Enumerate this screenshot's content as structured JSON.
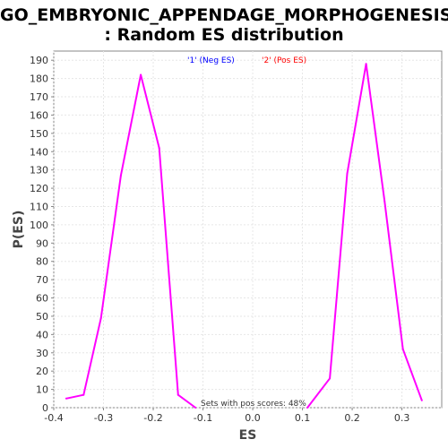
{
  "chart_data": {
    "type": "line",
    "title_line1": "GO_EMBRYONIC_APPENDAGE_MORPHOGENESIS",
    "title_line2": ": Random ES distribution",
    "xlabel": "ES",
    "ylabel": "P(ES)",
    "xlim": [
      -0.4,
      0.38
    ],
    "ylim": [
      0,
      195
    ],
    "xticks": [
      -0.4,
      -0.3,
      -0.2,
      -0.1,
      0.0,
      0.1,
      0.2,
      0.3
    ],
    "xtick_labels": [
      "-0.4",
      "-0.3",
      "-0.2",
      "-0.1",
      "0.0",
      "0.1",
      "0.2",
      "0.3"
    ],
    "yticks": [
      0,
      10,
      20,
      30,
      40,
      50,
      60,
      70,
      80,
      90,
      100,
      110,
      120,
      130,
      140,
      150,
      160,
      170,
      180,
      190
    ],
    "grid": true,
    "legend": [
      "'1' (Neg ES)",
      "'2' (Pos ES)"
    ],
    "legend_colors": [
      "#0000ff",
      "#ff0000"
    ],
    "line_color": "#ff00ff",
    "annotation": "Sets with pos scores: 48%",
    "series": [
      {
        "x": [
          -0.375,
          -0.34,
          -0.305,
          -0.265,
          -0.225,
          -0.188,
          -0.15,
          -0.115
        ],
        "y": [
          5,
          7,
          49,
          127,
          182,
          142,
          7,
          0
        ]
      },
      {
        "x": [
          0.11,
          0.155,
          0.19,
          0.228,
          0.265,
          0.302,
          0.34
        ],
        "y": [
          0,
          16,
          128,
          188,
          113,
          32,
          4
        ]
      }
    ]
  }
}
